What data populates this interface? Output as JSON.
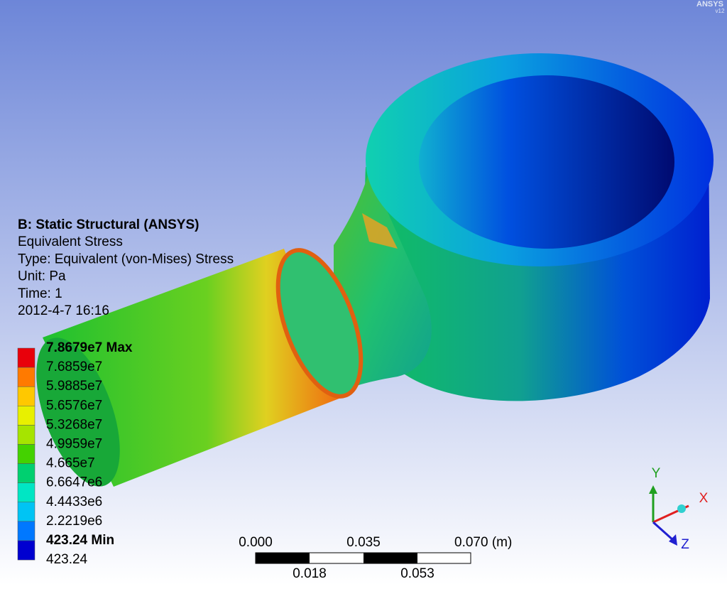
{
  "logo": {
    "brand": "ANSYS",
    "version": "v12"
  },
  "info": {
    "lines": [
      "B: Static Structural (ANSYS)",
      "Equivalent Stress",
      "Type: Equivalent (von-Mises) Stress",
      "Unit: Pa",
      "Time: 1",
      "2012-4-7 16:16"
    ]
  },
  "legend": {
    "labels": [
      "7.8679e7 Max",
      "7.6859e7",
      "5.9885e7",
      "5.6576e7",
      "5.3268e7",
      "4.9959e7",
      "4.665e7",
      "6.6647e6",
      "4.4433e6",
      "2.2219e6",
      "423.24 Min",
      "423.24"
    ],
    "colors": [
      "#e8000b",
      "#ff7a00",
      "#ffc800",
      "#e8f000",
      "#a6e400",
      "#44d200",
      "#00d070",
      "#00e6c4",
      "#00c4f4",
      "#0078ff",
      "#0000d0"
    ]
  },
  "scale": {
    "top": [
      "0.000",
      "0.035",
      "0.070 (m)"
    ],
    "bottom": [
      "0.018",
      "0.053"
    ]
  },
  "triad": {
    "x": "X",
    "y": "Y",
    "z": "Z"
  }
}
